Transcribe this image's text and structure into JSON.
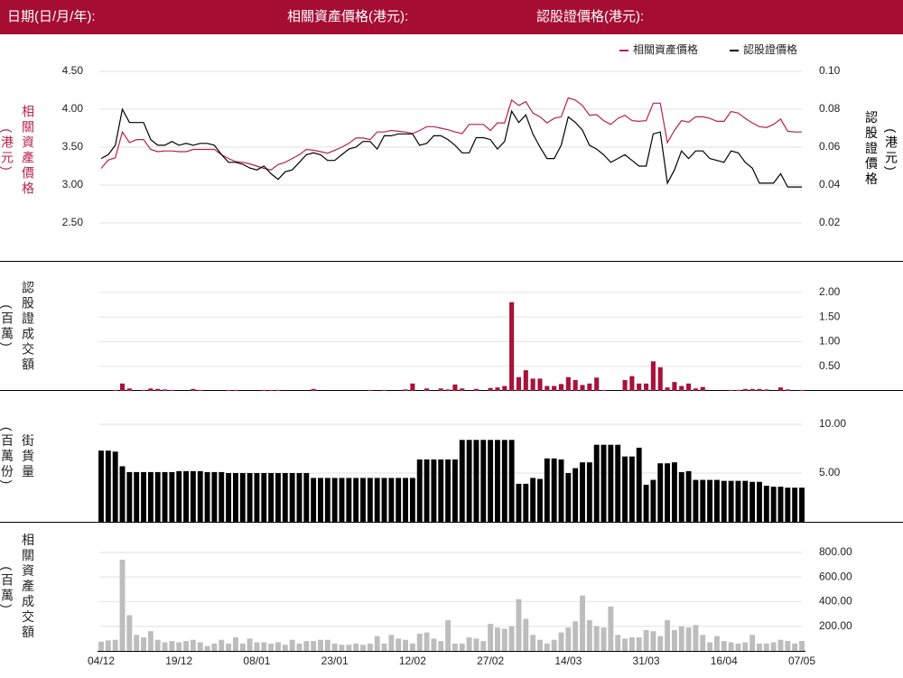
{
  "header": {
    "date_label": "日期(日/月/年):",
    "underlying_label": "相關資產價格(港元):",
    "warrant_label": "認股證價格(港元):"
  },
  "chart_data": [
    {
      "type": "line",
      "legend": "top-right",
      "grid": true,
      "ylabel": "相關資產價格",
      "ylabel_unit": "(港元)",
      "y2label": "認股證價格",
      "y2label_unit": "(港元)",
      "ylim": [
        2.2,
        4.7
      ],
      "yticks": [
        {
          "value": 2.5,
          "label": "2.50"
        },
        {
          "value": 3,
          "label": "3.00"
        },
        {
          "value": 3.5,
          "label": "3.50"
        },
        {
          "value": 4,
          "label": "4.00"
        },
        {
          "value": 4.5,
          "label": "4.50"
        }
      ],
      "y2lim": [
        0.008,
        0.108
      ],
      "y2ticks": [
        0.02,
        0.04,
        0.06,
        0.08,
        {
          "value": 0.1,
          "label": "0.10"
        }
      ],
      "series": [
        {
          "name": "相關資產價格",
          "color": "#b8224a",
          "values": [
            3.22,
            3.33,
            3.36,
            3.7,
            3.56,
            3.6,
            3.6,
            3.47,
            3.44,
            3.45,
            3.45,
            3.44,
            3.44,
            3.47,
            3.47,
            3.47,
            3.47,
            3.4,
            3.35,
            3.31,
            3.3,
            3.28,
            3.25,
            3.22,
            3.2,
            3.27,
            3.3,
            3.35,
            3.4,
            3.47,
            3.46,
            3.44,
            3.42,
            3.46,
            3.5,
            3.55,
            3.62,
            3.62,
            3.6,
            3.7,
            3.7,
            3.72,
            3.71,
            3.7,
            3.68,
            3.72,
            3.77,
            3.77,
            3.75,
            3.73,
            3.7,
            3.68,
            3.8,
            3.8,
            3.8,
            3.72,
            3.82,
            3.82,
            4.12,
            4.05,
            4.1,
            3.95,
            3.9,
            3.82,
            3.88,
            3.9,
            4.15,
            4.12,
            4.05,
            3.92,
            3.93,
            3.85,
            3.8,
            3.88,
            3.92,
            3.85,
            3.84,
            3.85,
            4.08,
            4.08,
            3.56,
            3.72,
            3.85,
            3.83,
            3.9,
            3.9,
            3.88,
            3.84,
            3.84,
            3.97,
            3.95,
            3.88,
            3.82,
            3.77,
            3.76,
            3.8,
            3.87,
            3.71,
            3.7,
            3.7
          ]
        },
        {
          "name": "認股證價格",
          "color": "#000000",
          "axis": "y2",
          "values": [
            0.054,
            0.056,
            0.061,
            0.08,
            0.073,
            0.073,
            0.073,
            0.064,
            0.061,
            0.061,
            0.063,
            0.061,
            0.062,
            0.061,
            0.062,
            0.062,
            0.061,
            0.056,
            0.052,
            0.052,
            0.051,
            0.049,
            0.048,
            0.05,
            0.046,
            0.043,
            0.047,
            0.048,
            0.052,
            0.056,
            0.057,
            0.056,
            0.053,
            0.053,
            0.056,
            0.059,
            0.06,
            0.063,
            0.063,
            0.059,
            0.066,
            0.066,
            0.067,
            0.067,
            0.067,
            0.061,
            0.062,
            0.066,
            0.066,
            0.064,
            0.061,
            0.057,
            0.057,
            0.065,
            0.065,
            0.064,
            0.059,
            0.063,
            0.079,
            0.073,
            0.077,
            0.067,
            0.06,
            0.054,
            0.054,
            0.061,
            0.076,
            0.073,
            0.069,
            0.061,
            0.059,
            0.056,
            0.052,
            0.054,
            0.056,
            0.053,
            0.05,
            0.05,
            0.067,
            0.068,
            0.041,
            0.048,
            0.058,
            0.054,
            0.058,
            0.058,
            0.054,
            0.053,
            0.052,
            0.058,
            0.057,
            0.052,
            0.049,
            0.041,
            0.041,
            0.041,
            0.046,
            0.039,
            0.039,
            0.039
          ]
        }
      ]
    },
    {
      "type": "bar",
      "grid": true,
      "ylabel": "認股證成交額",
      "ylabel_unit": "(百萬)",
      "color": "#a8123a",
      "ylim": [
        0,
        2.2
      ],
      "yticks": [
        {
          "value": 0.5,
          "label": "0.50"
        },
        {
          "value": 1,
          "label": "1.00"
        },
        {
          "value": 1.5,
          "label": "1.50"
        },
        {
          "value": 2,
          "label": "2.00"
        }
      ],
      "values": [
        0,
        0,
        0.02,
        0.15,
        0.05,
        0,
        0.02,
        0.05,
        0.04,
        0.03,
        0.02,
        0,
        0,
        0.04,
        0.02,
        0,
        0,
        0,
        0.02,
        0.02,
        0,
        0,
        0,
        0.02,
        0.02,
        0.02,
        0,
        0,
        0,
        0,
        0.04,
        0,
        0,
        0,
        0,
        0,
        0,
        0,
        0.02,
        0,
        0.02,
        0,
        0,
        0.03,
        0.15,
        0,
        0.05,
        0,
        0.05,
        0.03,
        0.13,
        0.05,
        0,
        0.04,
        0,
        0.06,
        0.07,
        0.1,
        1.8,
        0.28,
        0.42,
        0.25,
        0.25,
        0.1,
        0.1,
        0.14,
        0.28,
        0.22,
        0.12,
        0.15,
        0.27,
        0.02,
        0,
        0,
        0.22,
        0.3,
        0.15,
        0.15,
        0.6,
        0.48,
        0.07,
        0.18,
        0.1,
        0.15,
        0.05,
        0.08,
        0,
        0,
        0,
        0.02,
        0.02,
        0.04,
        0.04,
        0.04,
        0.03,
        0,
        0.07,
        0.03,
        0,
        0.02
      ]
    },
    {
      "type": "bar",
      "grid": true,
      "ylabel": "街貨量",
      "ylabel_unit": "(百萬份)",
      "color": "#000000",
      "ylim": [
        0,
        11.5
      ],
      "yticks": [
        {
          "value": 5,
          "label": "5.00"
        },
        {
          "value": 10,
          "label": "10.00"
        }
      ],
      "values": [
        7.3,
        7.3,
        7.2,
        5.7,
        5.1,
        5.1,
        5.1,
        5.1,
        5.1,
        5.1,
        5.1,
        5.2,
        5.2,
        5.2,
        5.2,
        5.1,
        5.1,
        5.1,
        5.0,
        5.0,
        5.0,
        5.0,
        5.0,
        5.0,
        5.0,
        5.0,
        5.0,
        5.0,
        5.0,
        5.0,
        4.5,
        4.5,
        4.5,
        4.5,
        4.5,
        4.5,
        4.5,
        4.5,
        4.5,
        4.5,
        4.5,
        4.5,
        4.5,
        4.5,
        4.5,
        6.4,
        6.4,
        6.4,
        6.4,
        6.4,
        6.4,
        8.4,
        8.4,
        8.4,
        8.4,
        8.4,
        8.4,
        8.4,
        8.4,
        3.9,
        3.9,
        4.5,
        4.4,
        6.5,
        6.5,
        6.4,
        5.0,
        5.5,
        6.1,
        6.1,
        7.9,
        7.9,
        7.9,
        7.9,
        6.7,
        6.7,
        7.6,
        3.8,
        4.3,
        6.0,
        6.0,
        6.1,
        5.1,
        5.2,
        4.3,
        4.3,
        4.3,
        4.3,
        4.2,
        4.2,
        4.2,
        4.2,
        4.1,
        4.1,
        3.7,
        3.6,
        3.6,
        3.5,
        3.5,
        3.5
      ]
    },
    {
      "type": "bar",
      "grid": true,
      "ylabel": "相關資產成交額",
      "ylabel_unit": "(百萬)",
      "color": "#bdbdbd",
      "ylim": [
        0,
        880
      ],
      "yticks": [
        {
          "value": 200,
          "label": "200.00"
        },
        {
          "value": 400,
          "label": "400.00"
        },
        {
          "value": 600,
          "label": "600.00"
        },
        {
          "value": 800,
          "label": "800.00"
        }
      ],
      "categories": [
        "04/12",
        null,
        null,
        null,
        null,
        null,
        null,
        null,
        null,
        null,
        null,
        "19/12",
        null,
        null,
        null,
        null,
        null,
        null,
        null,
        null,
        null,
        null,
        "08/01",
        null,
        null,
        null,
        null,
        null,
        null,
        null,
        null,
        null,
        null,
        "23/01",
        null,
        null,
        null,
        null,
        null,
        null,
        null,
        null,
        null,
        null,
        "12/02",
        null,
        null,
        null,
        null,
        null,
        null,
        null,
        null,
        null,
        null,
        "27/02",
        null,
        null,
        null,
        null,
        null,
        null,
        null,
        null,
        null,
        null,
        "14/03",
        null,
        null,
        null,
        null,
        null,
        null,
        null,
        null,
        null,
        null,
        "31/03",
        null,
        null,
        null,
        null,
        null,
        null,
        null,
        null,
        null,
        null,
        "16/04",
        null,
        null,
        null,
        null,
        null,
        null,
        null,
        null,
        null,
        null,
        "07/05"
      ],
      "values": [
        75,
        85,
        90,
        740,
        290,
        130,
        110,
        160,
        90,
        70,
        80,
        70,
        80,
        90,
        70,
        40,
        60,
        90,
        60,
        110,
        60,
        100,
        70,
        70,
        60,
        70,
        50,
        90,
        60,
        80,
        80,
        90,
        90,
        60,
        50,
        50,
        60,
        50,
        60,
        120,
        60,
        130,
        100,
        90,
        60,
        140,
        150,
        100,
        80,
        250,
        60,
        60,
        110,
        100,
        80,
        220,
        190,
        180,
        200,
        420,
        260,
        130,
        90,
        60,
        90,
        150,
        190,
        240,
        450,
        250,
        200,
        190,
        360,
        130,
        100,
        110,
        110,
        170,
        160,
        120,
        250,
        170,
        200,
        190,
        210,
        130,
        70,
        120,
        80,
        70,
        60,
        70,
        130,
        60,
        60,
        70,
        90,
        80,
        60,
        80
      ]
    }
  ]
}
